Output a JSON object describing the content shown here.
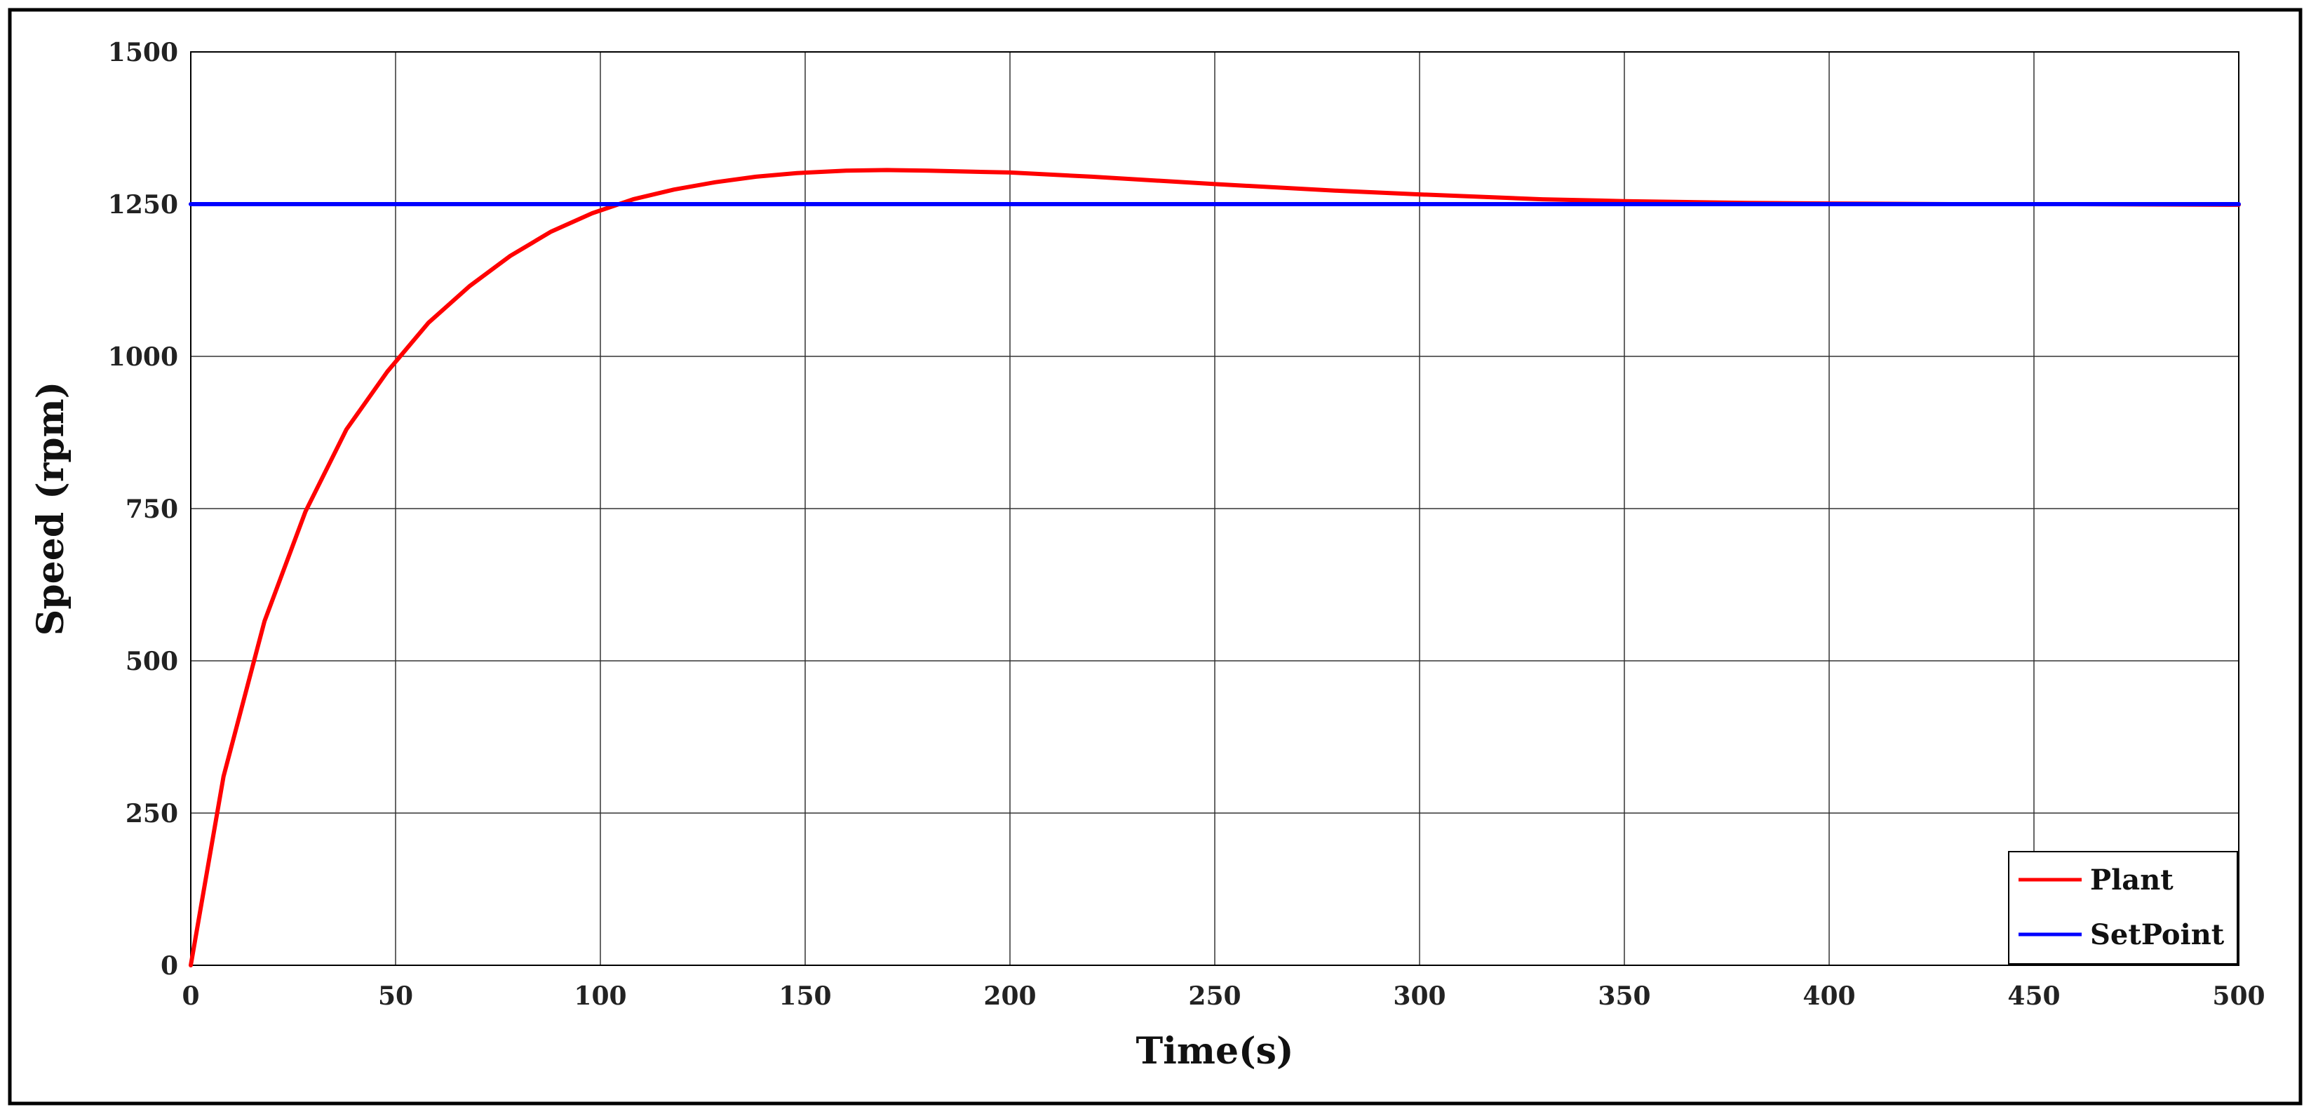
{
  "chart_data": {
    "type": "line",
    "title": "",
    "xlabel": "Time(s)",
    "ylabel": "Speed (rpm)",
    "xlim": [
      0,
      500
    ],
    "ylim": [
      0,
      1500
    ],
    "xticks": [
      "0",
      "50",
      "100",
      "150",
      "200",
      "250",
      "300",
      "350",
      "400",
      "450",
      "500"
    ],
    "yticks": [
      "0",
      "250",
      "500",
      "750",
      "1000",
      "1250",
      "1500"
    ],
    "grid": true,
    "legend_position": "bottom-right",
    "series": [
      {
        "name": "Plant",
        "color": "#ff0000",
        "x": [
          0,
          8,
          18,
          28,
          38,
          48,
          58,
          68,
          78,
          88,
          98,
          108,
          118,
          128,
          138,
          148,
          160,
          170,
          180,
          200,
          220,
          250,
          280,
          300,
          330,
          350,
          380,
          400,
          430,
          460,
          500
        ],
        "y": [
          0,
          310,
          565,
          745,
          880,
          975,
          1055,
          1115,
          1165,
          1205,
          1235,
          1258,
          1274,
          1286,
          1295,
          1301,
          1305,
          1306,
          1305,
          1302,
          1295,
          1283,
          1272,
          1266,
          1258,
          1255,
          1252,
          1251,
          1250,
          1250,
          1249
        ]
      },
      {
        "name": "SetPoint",
        "color": "#0000ff",
        "x": [
          0,
          500
        ],
        "y": [
          1250,
          1250
        ]
      }
    ]
  }
}
